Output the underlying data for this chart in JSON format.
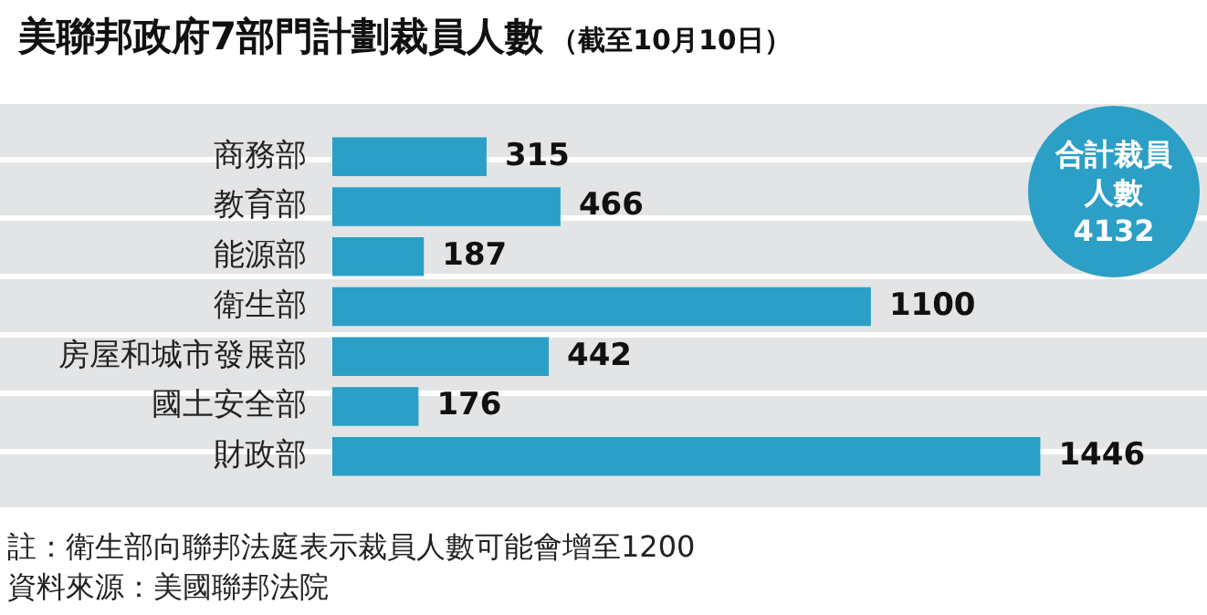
{
  "chart_data": {
    "type": "bar",
    "orientation": "horizontal",
    "title": "美聯邦政府7部門計劃裁員人數",
    "subtitle": "（截至10月10日）",
    "categories": [
      "商務部",
      "教育部",
      "能源部",
      "衛生部",
      "房屋和城市發展部",
      "國土安全部",
      "財政部"
    ],
    "values": [
      315,
      466,
      187,
      1100,
      442,
      176,
      1446
    ],
    "color": "#2b9fc6",
    "data_labels": true,
    "grid": false,
    "legend": false,
    "annotations": [
      "合計裁員人數4132",
      "註：衛生部向聯邦法庭表示裁員人數可能會增至1200",
      "資料來源：美國聯邦法院"
    ]
  }
}
